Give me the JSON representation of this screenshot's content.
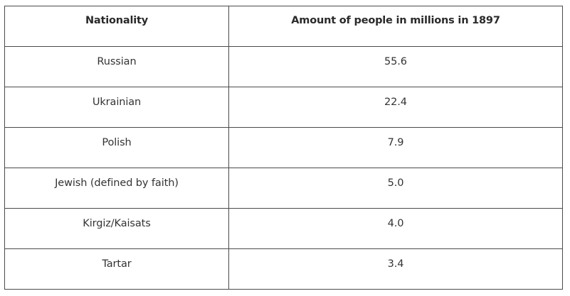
{
  "table": {
    "headers": [
      "Nationality",
      "Amount of people in millions in 1897"
    ],
    "rows": [
      [
        "Russian",
        "55.6"
      ],
      [
        "Ukrainian",
        "22.4"
      ],
      [
        "Polish",
        "7.9"
      ],
      [
        "Jewish (defined by faith)",
        "5.0"
      ],
      [
        "Kirgiz/Kaisats",
        "4.0"
      ],
      [
        "Tartar",
        "3.4"
      ]
    ]
  },
  "colors": {
    "border": "#4a4a4a",
    "text": "#333333",
    "background": "#ffffff"
  }
}
